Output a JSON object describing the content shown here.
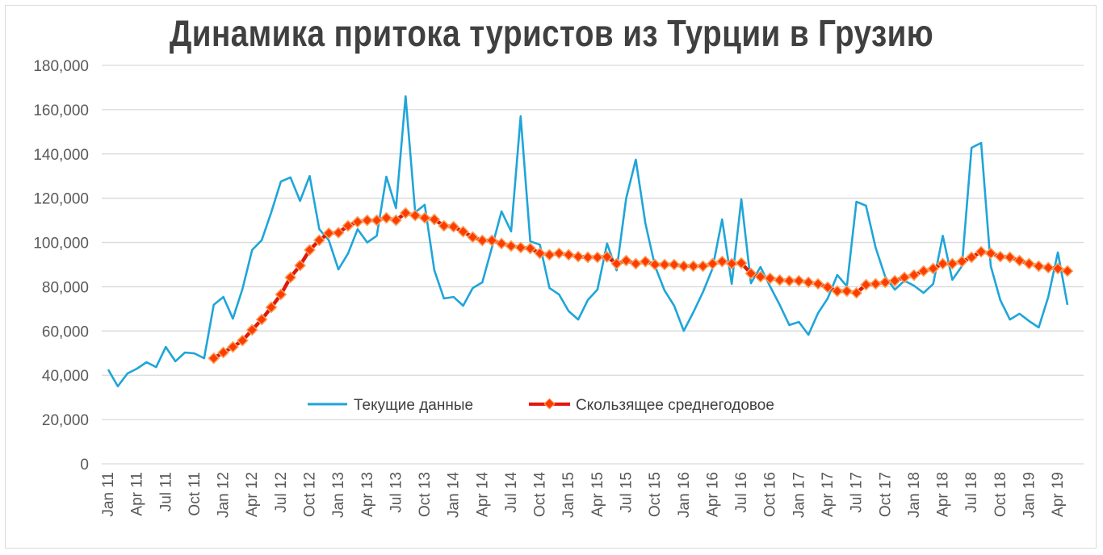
{
  "chart_data": {
    "type": "line",
    "title": "Динамика притока туристов из Турции в Грузию",
    "xlabel": "",
    "ylabel": "",
    "ylim": [
      0,
      180000
    ],
    "y_ticks": [
      "0",
      "20,000",
      "40,000",
      "60,000",
      "80,000",
      "100,000",
      "120,000",
      "140,000",
      "160,000",
      "180,000"
    ],
    "x_tick_labels": [
      "Jan 11",
      "Apr 11",
      "Jul 11",
      "Oct 11",
      "Jan 12",
      "Apr 12",
      "Jul 12",
      "Oct 12",
      "Jan 13",
      "Apr 13",
      "Jul 13",
      "Oct 13",
      "Jan 14",
      "Apr 14",
      "Jul 14",
      "Oct 14",
      "Jan 15",
      "Apr 15",
      "Jul 15",
      "Oct 15",
      "Jan 16",
      "Apr 16",
      "Jul 16",
      "Oct 16",
      "Jan 17",
      "Apr 17",
      "Jul 17",
      "Oct 17",
      "Jan 18",
      "Apr 18",
      "Jul 18",
      "Oct 18",
      "Jan 19",
      "Apr 19"
    ],
    "x_range": [
      "Jan 11",
      "May 19"
    ],
    "x_frequency": "monthly",
    "grid": true,
    "legend_position": "bottom-center (inside plot)",
    "series": [
      {
        "name": "Текущие данные",
        "color": "#1FA5D9",
        "values": [
          42600,
          35000,
          40800,
          43000,
          45900,
          43700,
          52800,
          46300,
          50300,
          49900,
          47700,
          71800,
          75400,
          65600,
          79000,
          96600,
          101000,
          113700,
          127500,
          129400,
          118800,
          130000,
          106000,
          101000,
          87800,
          95000,
          106000,
          100000,
          103000,
          129700,
          115500,
          166000,
          113600,
          117000,
          87400,
          74700,
          75400,
          71400,
          79400,
          82000,
          97700,
          114000,
          105000,
          157000,
          100500,
          99000,
          79400,
          76500,
          69000,
          65200,
          74000,
          78700,
          99500,
          87400,
          120000,
          137400,
          108600,
          89300,
          78300,
          71400,
          60100,
          68500,
          77600,
          88200,
          110400,
          81300,
          119500,
          81600,
          88900,
          80200,
          71800,
          62700,
          64100,
          58300,
          68100,
          74700,
          85300,
          80200,
          118400,
          116600,
          97700,
          84500,
          78700,
          82700,
          80500,
          77200,
          81300,
          103000,
          83100,
          89300,
          142800,
          145000,
          89300,
          74000,
          65200,
          67800,
          64500,
          61600,
          75400,
          95500,
          71800
        ]
      },
      {
        "name": "Скользящее среднегодовое",
        "color": "#E3170A",
        "marker_color": "#FF3C00",
        "marker_edge": "#F7A35C",
        "values": [
          null,
          null,
          null,
          null,
          null,
          null,
          null,
          null,
          null,
          null,
          null,
          47700,
          50300,
          52800,
          55700,
          60500,
          65200,
          70700,
          76500,
          84200,
          89600,
          96600,
          101000,
          104200,
          104400,
          107500,
          109300,
          110000,
          110000,
          111100,
          110000,
          113300,
          112200,
          111100,
          110400,
          107500,
          107100,
          104900,
          102400,
          100900,
          100900,
          99500,
          98400,
          97700,
          97300,
          95100,
          94400,
          95100,
          94400,
          93600,
          93300,
          93300,
          93500,
          90400,
          91800,
          90400,
          91400,
          90000,
          90000,
          90000,
          89300,
          89300,
          89300,
          90400,
          91400,
          90400,
          90700,
          86000,
          84500,
          83800,
          83000,
          82700,
          82700,
          82000,
          81300,
          79800,
          78000,
          78000,
          77200,
          80900,
          81300,
          82000,
          82700,
          84200,
          85300,
          87100,
          88200,
          90400,
          90400,
          91400,
          93300,
          95800,
          95100,
          93600,
          93300,
          91800,
          90400,
          89300,
          88600,
          88200,
          87100
        ]
      }
    ]
  }
}
